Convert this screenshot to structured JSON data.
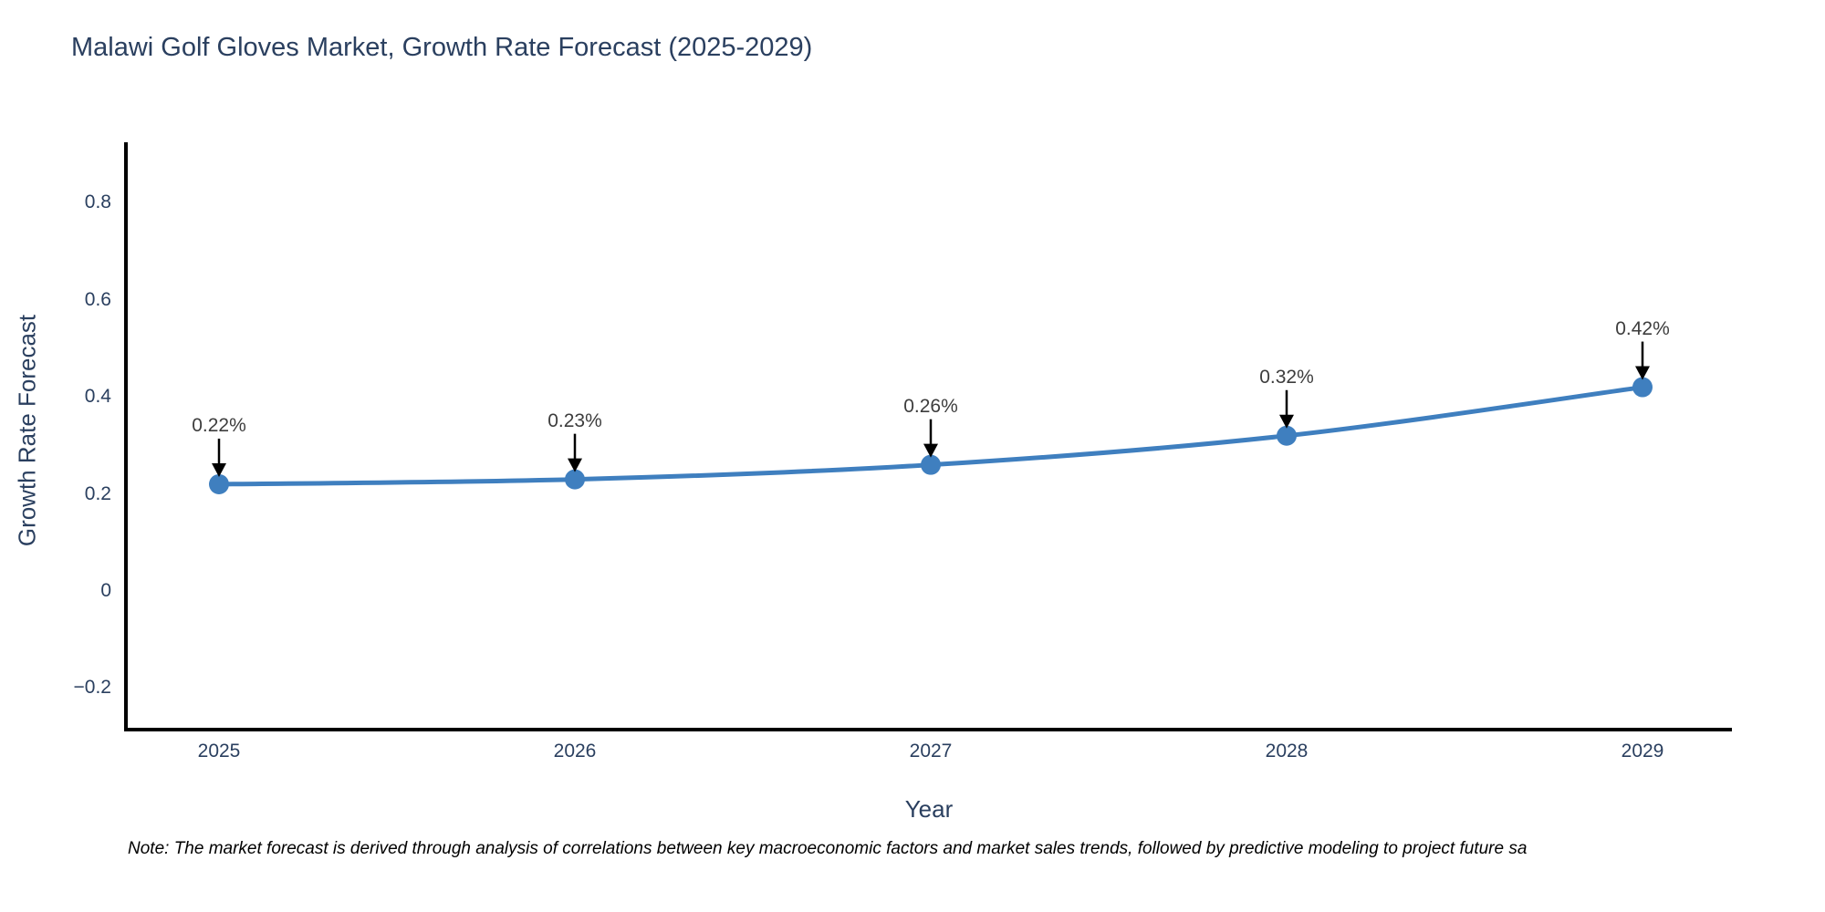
{
  "title": "Malawi Golf Gloves Market, Growth Rate Forecast (2025-2029)",
  "note": "Note: The market forecast is derived through analysis of correlations between key macroeconomic factors and market sales trends, followed by predictive modeling to project future sa",
  "chart_data": {
    "type": "line",
    "title": "Malawi Golf Gloves Market, Growth Rate Forecast (2025-2029)",
    "xlabel": "Year",
    "ylabel": "Growth Rate Forecast",
    "x": [
      2025,
      2026,
      2027,
      2028,
      2029
    ],
    "values": [
      0.22,
      0.23,
      0.26,
      0.32,
      0.42
    ],
    "point_labels": [
      "0.22%",
      "0.23%",
      "0.26%",
      "0.32%",
      "0.42%"
    ],
    "xtick_labels": [
      "2025",
      "2026",
      "2027",
      "2028",
      "2029"
    ],
    "ytick_values": [
      0.8,
      0.6,
      0.4,
      0.2,
      0,
      -0.2
    ],
    "ytick_labels": [
      "0.8",
      "0.6",
      "0.4",
      "0.2",
      "0",
      "−0.2"
    ],
    "ylim": [
      -0.29,
      0.92
    ],
    "grid": false,
    "legend": false,
    "line_color": "#3f7fbf",
    "marker_color": "#3f7fbf",
    "axis_color": "#000000",
    "annotation_arrow_color": "#000000"
  }
}
